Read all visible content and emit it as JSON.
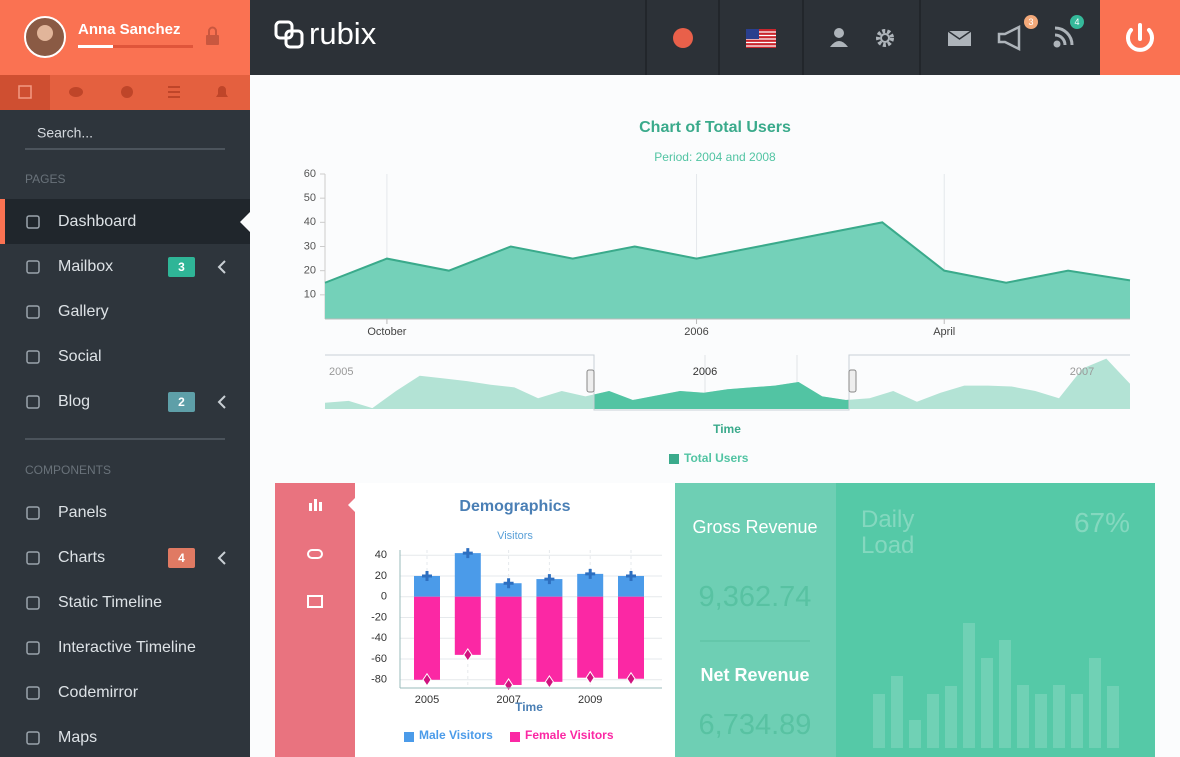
{
  "profile": {
    "name": "Anna Sanchez"
  },
  "brand": "rubix",
  "header": {
    "badges": [
      {
        "value": 3,
        "color": "#f3a97a"
      },
      {
        "value": 4,
        "color": "#35b99a"
      }
    ]
  },
  "sidebar": {
    "search": "Search...",
    "sections": [
      {
        "title": "PAGES",
        "items": [
          {
            "label": "Dashboard"
          },
          {
            "label": "Mailbox",
            "badge": 3,
            "color": "#2fb597"
          },
          {
            "label": "Gallery"
          },
          {
            "label": "Social"
          },
          {
            "label": "Blog",
            "badge": 2,
            "color": "#5e9fa8"
          }
        ]
      },
      {
        "title": "COMPONENTS",
        "items": [
          {
            "label": "Panels"
          },
          {
            "label": "Charts",
            "badge": 4,
            "color": "#e07a63"
          },
          {
            "label": "Static Timeline"
          },
          {
            "label": "Interactive Timeline"
          },
          {
            "label": "Codemirror"
          },
          {
            "label": "Maps"
          }
        ]
      }
    ]
  },
  "chart_data": [
    {
      "type": "area",
      "title": "Chart of Total Users",
      "subtitle": "Period: 2004 and 2008",
      "x_label": "Time",
      "categories": [
        null,
        "October",
        null,
        null,
        null,
        null,
        "2006",
        null,
        null,
        null,
        "April",
        null,
        null,
        null
      ],
      "series": [
        {
          "name": "Total Users",
          "color": "#74d1b9",
          "line_color": "#3aaa8b",
          "values": [
            15,
            25,
            20,
            30,
            25,
            30,
            25,
            30,
            35,
            40,
            20,
            15,
            20,
            16
          ]
        }
      ],
      "ylim": [
        0,
        60
      ],
      "yticks": [
        10,
        20,
        30,
        40,
        50,
        60
      ],
      "navigator": {
        "labels": [
          "2005",
          "2006",
          "2007"
        ],
        "color": "#b3e3d5",
        "selected_color": "#52c4a3",
        "values": [
          7,
          9,
          1,
          20,
          37,
          34,
          31,
          27,
          24,
          12,
          20,
          14,
          20,
          10,
          15,
          20,
          18,
          22,
          24,
          26,
          30,
          14,
          10,
          12,
          20,
          8,
          18,
          26,
          26,
          25,
          20,
          12,
          45,
          56,
          28
        ]
      }
    },
    {
      "type": "bar",
      "stacked": true,
      "title": "Demographics",
      "subtitle": "Visitors",
      "x_label": "Time",
      "categories": [
        "2005",
        null,
        "2007",
        null,
        "2009",
        null
      ],
      "series": [
        {
          "name": "Male Visitors",
          "color": "#4b9be9",
          "values": [
            20,
            42,
            13,
            17,
            22,
            20
          ]
        },
        {
          "name": "Female Visitors",
          "color": "#fb28a4",
          "values": [
            -80,
            -56,
            -85,
            -82,
            -78,
            -79
          ]
        }
      ],
      "ylim": [
        -86,
        45
      ],
      "yticks": [
        40,
        20,
        0,
        -20,
        -40,
        -60,
        -80
      ]
    },
    {
      "type": "bar",
      "title": "Daily Load",
      "annotation": "67%",
      "color": "rgba(255,255,255,0.16)",
      "values": [
        54,
        72,
        28,
        54,
        62,
        125,
        90,
        108,
        63,
        54,
        63,
        54,
        90,
        62
      ]
    }
  ],
  "revenue": {
    "gross": {
      "label": "Gross Revenue",
      "value": "9,362.74"
    },
    "net": {
      "label": "Net Revenue",
      "value": "6,734.89"
    }
  }
}
